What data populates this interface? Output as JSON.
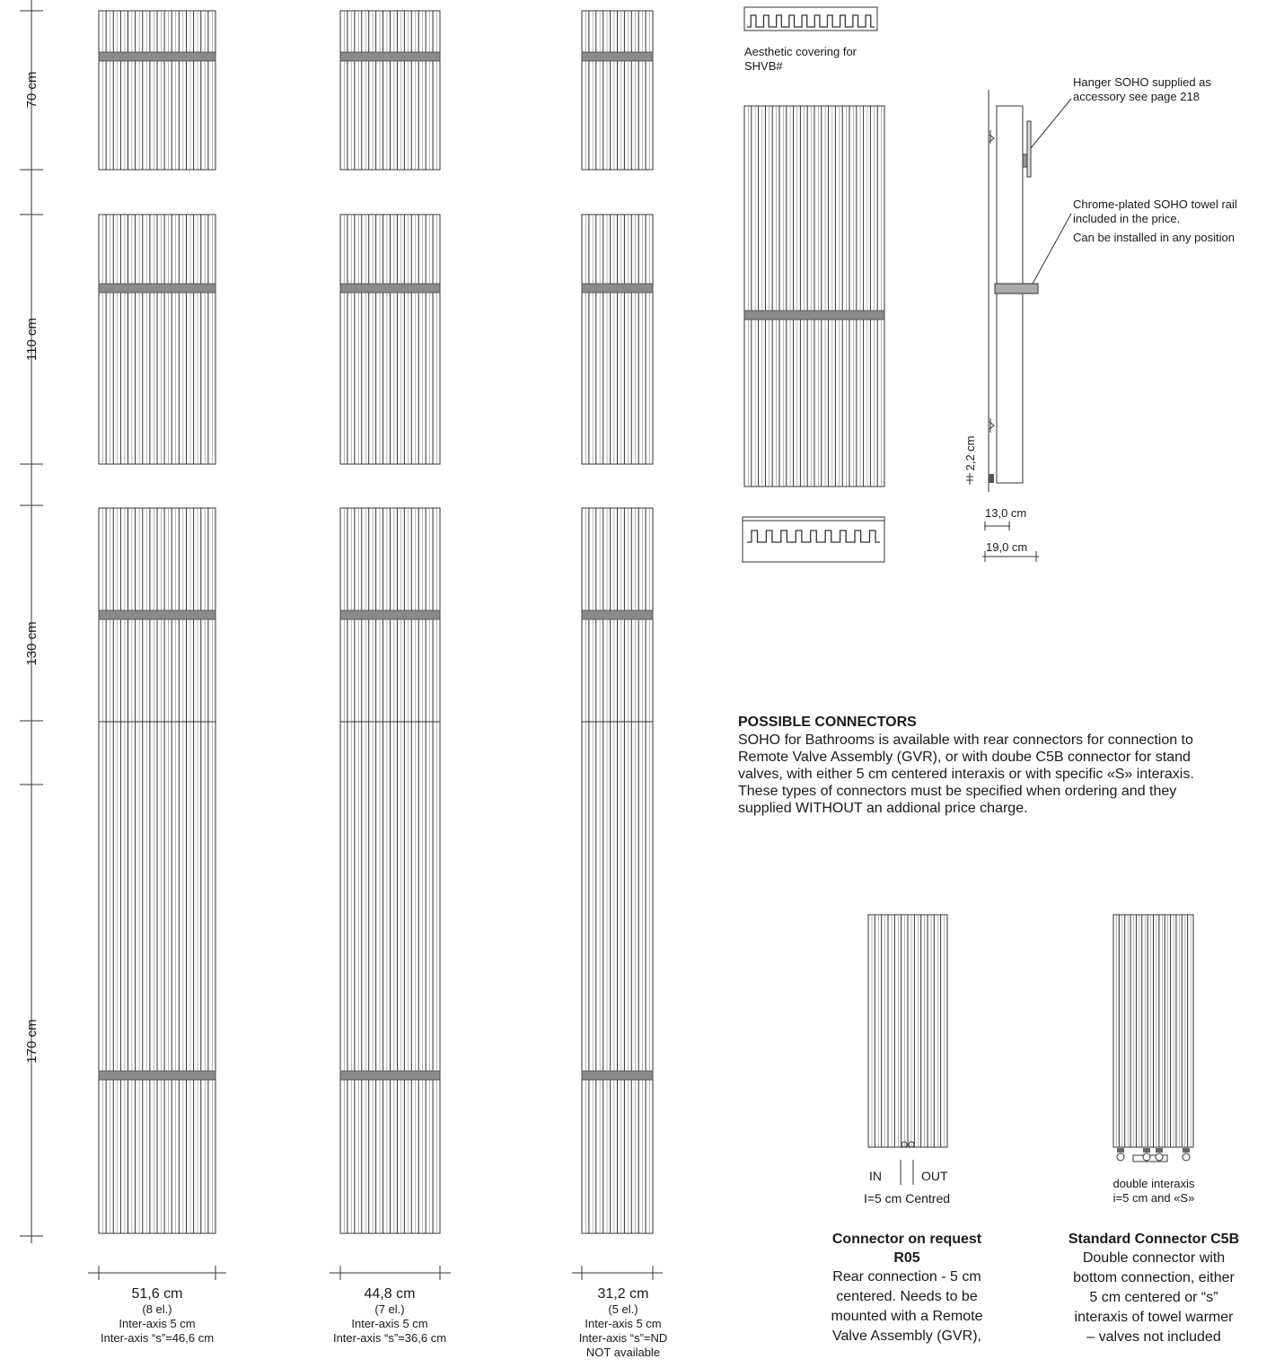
{
  "heights": [
    "70 cm",
    "110 cm",
    "130 cm",
    "170 cm"
  ],
  "widths": [
    {
      "size": "51,6 cm",
      "elements": "(8 el.)",
      "interaxis": "Inter-axis 5 cm",
      "interaxis_s": "Inter-axis “s”=46,6 cm",
      "note": ""
    },
    {
      "size": "44,8 cm",
      "elements": "(7 el.)",
      "interaxis": "Inter-axis 5 cm",
      "interaxis_s": "Inter-axis “s”=36,6 cm",
      "note": ""
    },
    {
      "size": "31,2 cm",
      "elements": "(5 el.)",
      "interaxis": "Inter-axis 5 cm",
      "interaxis_s": "Inter-axis “s”=ND",
      "note": "NOT available"
    }
  ],
  "covering_label": [
    "Aesthetic covering for",
    "SHVB#"
  ],
  "hanger_label": [
    "Hanger SOHO supplied as",
    "accessory see page 218"
  ],
  "rail_label": [
    "Chrome-plated SOHO towel rail",
    "included in the price.",
    "Can be installed in any position"
  ],
  "side_dims": {
    "wall_gap": "2,2 cm",
    "depth1": "13,0 cm",
    "depth2": "19,0 cm"
  },
  "connectors": {
    "heading": "POSSIBLE CONNECTORS",
    "lines": [
      "SOHO for Bathrooms is available with rear connectors for connection to",
      "Remote Valve Assembly (GVR), or with doube C5B connector for stand",
      "valves, with either 5 cm centered interaxis or with specific «S» interaxis.",
      "These types of connectors must be specified when ordering and they",
      "supplied WITHOUT an addional price charge."
    ],
    "r05": {
      "in": "IN",
      "out": "OUT",
      "spacing": "I=5 cm Centred",
      "title": [
        "Connector on request",
        "R05"
      ],
      "desc": [
        "Rear connection - 5 cm",
        "centered. Needs to be",
        "mounted with a Remote",
        "Valve Assembly (GVR),"
      ]
    },
    "c5b": {
      "spacing": [
        "double interaxis",
        "i=5 cm and «S»"
      ],
      "title": [
        "Standard Connector C5B"
      ],
      "desc": [
        "Double connector with",
        "bottom connection, either",
        "5 cm centered or “s”",
        "interaxis of towel warmer",
        "– valves not included"
      ]
    }
  }
}
